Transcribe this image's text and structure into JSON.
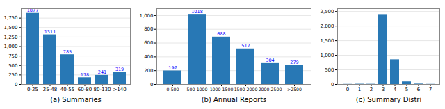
{
  "chart_data": [
    {
      "type": "bar",
      "xlabel": "(a) Summaries",
      "categories": [
        "0-25",
        "25-48",
        "40-55",
        "60-80",
        "80-130",
        ">140"
      ],
      "values": [
        1877,
        1311,
        785,
        178,
        241,
        319
      ],
      "color": "#2878b5",
      "ylim": [
        0,
        2000
      ],
      "yticks": [
        0,
        250,
        500,
        750,
        1000,
        1250,
        1500,
        1750
      ],
      "grid": true,
      "data_labels": true
    },
    {
      "type": "bar",
      "xlabel": "(b) Annual Reports",
      "categories": [
        "0-500",
        "500-1000",
        "1000-1500",
        "1500-2000",
        "2000-2500",
        ">2500"
      ],
      "values": [
        197,
        1018,
        688,
        517,
        304,
        279
      ],
      "color": "#2878b5",
      "ylim": [
        0,
        1100
      ],
      "yticks": [
        0,
        200,
        400,
        600,
        800,
        1000
      ],
      "grid": true,
      "data_labels": true
    },
    {
      "type": "bar",
      "xlabel": "(c) Summary Distri",
      "categories": [
        "0",
        "1",
        "2",
        "3",
        "4",
        "5",
        "6",
        "7"
      ],
      "values": [
        5,
        10,
        8,
        2400,
        850,
        90,
        15,
        5
      ],
      "color": "#2878b5",
      "ylim": [
        0,
        2600
      ],
      "yticks": [
        0,
        500,
        1000,
        1500,
        2000,
        2500
      ],
      "grid": true,
      "data_labels": false
    }
  ]
}
